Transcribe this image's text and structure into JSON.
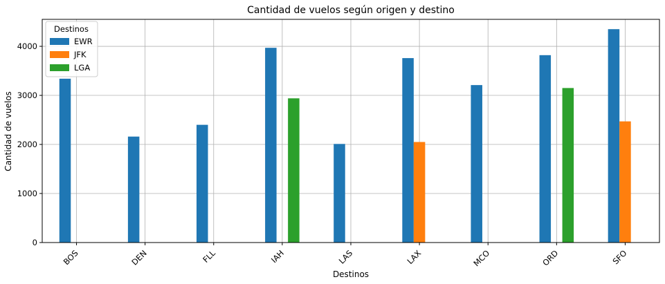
{
  "chart_data": {
    "type": "bar",
    "title": "Cantidad de vuelos según origen y destino",
    "xlabel": "Destinos",
    "ylabel": "Cantidad de vuelos",
    "categories": [
      "BOS",
      "DEN",
      "FLL",
      "IAH",
      "LAS",
      "LAX",
      "MCO",
      "ORD",
      "SFO"
    ],
    "series": [
      {
        "name": "EWR",
        "color": "#1f77b4",
        "values": [
          3340,
          2160,
          2400,
          3970,
          2010,
          3760,
          3210,
          3820,
          4350
        ]
      },
      {
        "name": "JFK",
        "color": "#ff7f0e",
        "values": [
          0,
          0,
          0,
          0,
          0,
          2050,
          0,
          0,
          2470
        ]
      },
      {
        "name": "LGA",
        "color": "#2ca02c",
        "values": [
          0,
          0,
          0,
          2940,
          0,
          0,
          0,
          3150,
          0
        ]
      }
    ],
    "ylim": [
      0,
      4550
    ],
    "yticks": [
      0,
      1000,
      2000,
      3000,
      4000
    ],
    "grid": true,
    "legend": {
      "title": "Destinos",
      "position": "upper-left"
    }
  }
}
